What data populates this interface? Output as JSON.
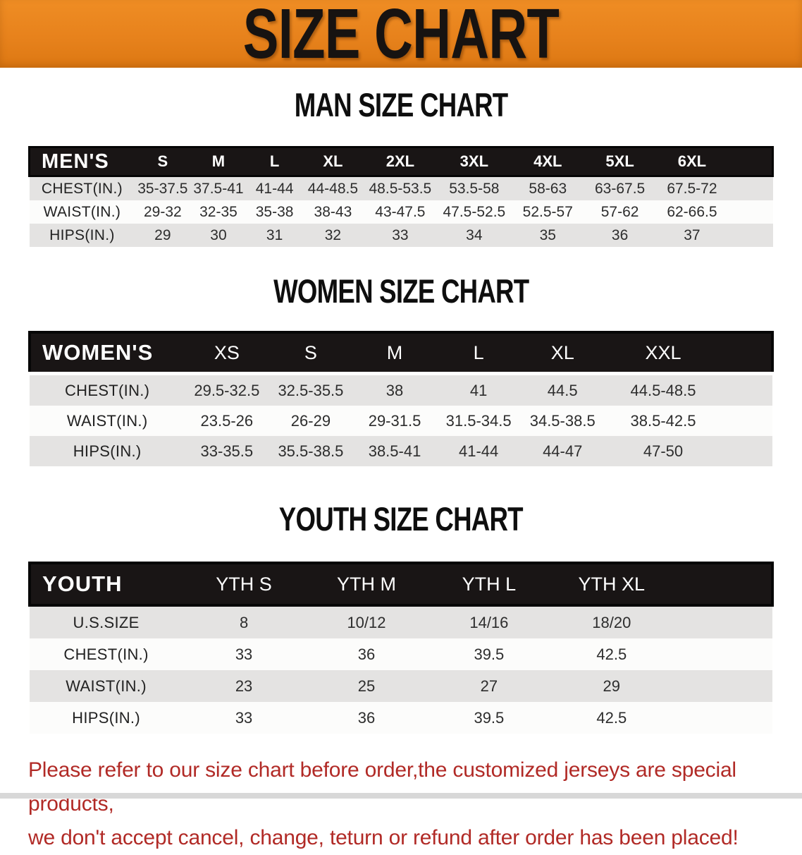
{
  "banner": {
    "title": "SIZE CHART"
  },
  "sections": [
    {
      "heading": "MAN SIZE CHART",
      "table": {
        "name": "MEN'S",
        "sizes": [
          "S",
          "M",
          "L",
          "XL",
          "2XL",
          "3XL",
          "4XL",
          "5XL",
          "6XL"
        ],
        "rows": [
          {
            "label": "CHEST(IN.)",
            "values": [
              "35-37.5",
              "37.5-41",
              "41-44",
              "44-48.5",
              "48.5-53.5",
              "53.5-58",
              "58-63",
              "63-67.5",
              "67.5-72"
            ]
          },
          {
            "label": "WAIST(IN.)",
            "values": [
              "29-32",
              "32-35",
              "35-38",
              "38-43",
              "43-47.5",
              "47.5-52.5",
              "52.5-57",
              "57-62",
              "62-66.5"
            ]
          },
          {
            "label": "HIPS(IN.)",
            "values": [
              "29",
              "30",
              "31",
              "32",
              "33",
              "34",
              "35",
              "36",
              "37"
            ]
          }
        ]
      }
    },
    {
      "heading": "WOMEN SIZE CHART",
      "table": {
        "name": "WOMEN'S",
        "sizes": [
          "XS",
          "S",
          "M",
          "L",
          "XL",
          "XXL"
        ],
        "rows": [
          {
            "label": "CHEST(IN.)",
            "values": [
              "29.5-32.5",
              "32.5-35.5",
              "38",
              "41",
              "44.5",
              "44.5-48.5"
            ]
          },
          {
            "label": "WAIST(IN.)",
            "values": [
              "23.5-26",
              "26-29",
              "29-31.5",
              "31.5-34.5",
              "34.5-38.5",
              "38.5-42.5"
            ]
          },
          {
            "label": "HIPS(IN.)",
            "values": [
              "33-35.5",
              "35.5-38.5",
              "38.5-41",
              "41-44",
              "44-47",
              "47-50"
            ]
          }
        ]
      }
    },
    {
      "heading": "YOUTH SIZE CHART",
      "table": {
        "name": "YOUTH",
        "sizes": [
          "YTH S",
          "YTH M",
          "YTH L",
          "YTH XL"
        ],
        "rows": [
          {
            "label": "U.S.SIZE",
            "values": [
              "8",
              "10/12",
              "14/16",
              "18/20"
            ]
          },
          {
            "label": "CHEST(IN.)",
            "values": [
              "33",
              "36",
              "39.5",
              "42.5"
            ]
          },
          {
            "label": "WAIST(IN.)",
            "values": [
              "23",
              "25",
              "27",
              "29"
            ]
          },
          {
            "label": "HIPS(IN.)",
            "values": [
              "33",
              "36",
              "39.5",
              "42.5"
            ]
          }
        ]
      }
    }
  ],
  "note": {
    "line1": "Please refer to our size chart before order,the customized jerseys are special products,",
    "line2": "we don't accept cancel, change, teturn or refund after order has been placed!"
  },
  "colors": {
    "banner_bg": "#E7821C",
    "banner_text": "#171311",
    "table_header_bg": "#191515",
    "row_shaded": "#E4E3E2",
    "row_plain": "#FCFCFB",
    "note_text": "#B12A26"
  }
}
